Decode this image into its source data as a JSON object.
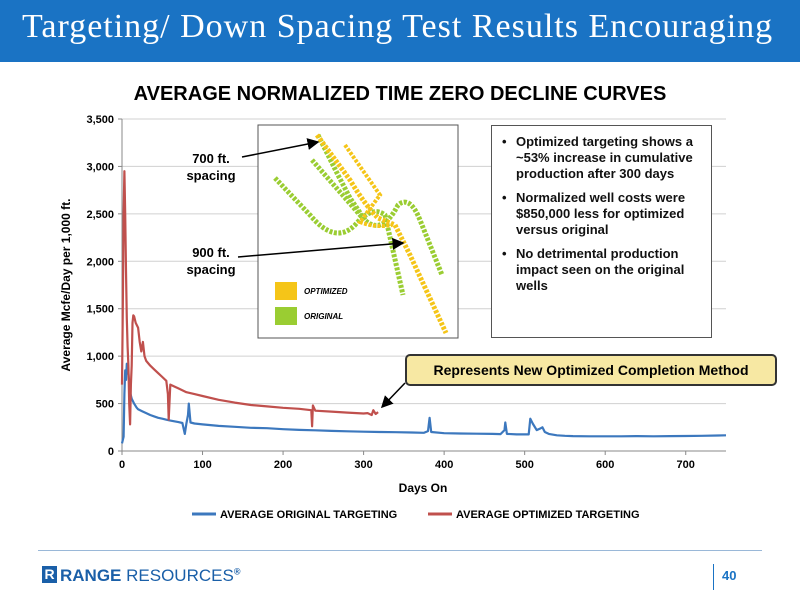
{
  "slide": {
    "title": "Targeting/ Down Spacing Test Results Encouraging",
    "page_number": "40",
    "brand": {
      "name_bold": "RANGE",
      "name_rest": " RESOURCES",
      "mark": "R",
      "reg": "®"
    }
  },
  "colors": {
    "title_bar": "#1a73c4",
    "original": "#3c78be",
    "optimized": "#c0504d",
    "diagram_optimized": "#f5c518",
    "diagram_original": "#9acd32",
    "callout": "#f7e8a3"
  },
  "bullets": [
    "Optimized targeting shows a ~53% increase in cumulative production after 300 days",
    "Normalized well costs were $850,000 less for optimized versus original",
    "No detrimental production impact seen on the original wells"
  ],
  "callout": "Represents New Optimized Completion Method",
  "spacing_labels": {
    "label_700": "700 ft. spacing",
    "label_900": "900 ft. spacing"
  },
  "diagram_legend": {
    "optimized": "OPTIMIZED",
    "original": "ORIGINAL"
  },
  "chart_data": {
    "type": "line",
    "title": "AVERAGE  NORMALIZED TIME ZERO DECLINE CURVES",
    "xlabel": "Days On",
    "ylabel": "Average Mcfe/Day per 1,000 ft.",
    "xlim": [
      0,
      750
    ],
    "ylim": [
      0,
      3500
    ],
    "xticks": [
      0,
      100,
      200,
      300,
      400,
      500,
      600,
      700
    ],
    "yticks": [
      0,
      500,
      1000,
      1500,
      2000,
      2500,
      3000,
      3500
    ],
    "ytick_labels": [
      "0",
      "500",
      "1,000",
      "1,500",
      "2,000",
      "2,500",
      "3,000",
      "3,500"
    ],
    "grid": "horizontal",
    "legend_position": "bottom",
    "series": [
      {
        "name": "AVERAGE ORIGINAL TARGETING",
        "points": [
          [
            0,
            80
          ],
          [
            2,
            150
          ],
          [
            3,
            600
          ],
          [
            4,
            850
          ],
          [
            5,
            750
          ],
          [
            6,
            920
          ],
          [
            8,
            820
          ],
          [
            10,
            620
          ],
          [
            12,
            550
          ],
          [
            15,
            500
          ],
          [
            18,
            460
          ],
          [
            20,
            440
          ],
          [
            25,
            420
          ],
          [
            30,
            400
          ],
          [
            35,
            380
          ],
          [
            40,
            365
          ],
          [
            45,
            350
          ],
          [
            50,
            340
          ],
          [
            55,
            330
          ],
          [
            60,
            320
          ],
          [
            70,
            305
          ],
          [
            75,
            295
          ],
          [
            78,
            180
          ],
          [
            80,
            290
          ],
          [
            82,
            380
          ],
          [
            83,
            500
          ],
          [
            85,
            300
          ],
          [
            90,
            290
          ],
          [
            100,
            280
          ],
          [
            120,
            265
          ],
          [
            140,
            255
          ],
          [
            160,
            245
          ],
          [
            180,
            240
          ],
          [
            200,
            230
          ],
          [
            220,
            222
          ],
          [
            240,
            218
          ],
          [
            260,
            212
          ],
          [
            280,
            208
          ],
          [
            300,
            203
          ],
          [
            320,
            200
          ],
          [
            340,
            198
          ],
          [
            360,
            195
          ],
          [
            375,
            192
          ],
          [
            380,
            210
          ],
          [
            382,
            350
          ],
          [
            384,
            200
          ],
          [
            400,
            188
          ],
          [
            420,
            185
          ],
          [
            440,
            182
          ],
          [
            460,
            180
          ],
          [
            470,
            178
          ],
          [
            475,
            220
          ],
          [
            476,
            300
          ],
          [
            478,
            180
          ],
          [
            490,
            175
          ],
          [
            505,
            175
          ],
          [
            507,
            340
          ],
          [
            510,
            290
          ],
          [
            515,
            220
          ],
          [
            520,
            240
          ],
          [
            522,
            250
          ],
          [
            525,
            200
          ],
          [
            530,
            180
          ],
          [
            540,
            165
          ],
          [
            550,
            160
          ],
          [
            560,
            157
          ],
          [
            580,
            155
          ],
          [
            600,
            155
          ],
          [
            620,
            155
          ],
          [
            640,
            157
          ],
          [
            660,
            155
          ],
          [
            680,
            157
          ],
          [
            700,
            158
          ],
          [
            720,
            160
          ],
          [
            740,
            163
          ],
          [
            750,
            165
          ]
        ]
      },
      {
        "name": "AVERAGE OPTIMIZED TARGETING",
        "points": [
          [
            0,
            700
          ],
          [
            1,
            1500
          ],
          [
            2,
            2500
          ],
          [
            3,
            2950
          ],
          [
            4,
            2500
          ],
          [
            5,
            1900
          ],
          [
            6,
            1400
          ],
          [
            7,
            1100
          ],
          [
            8,
            900
          ],
          [
            9,
            500
          ],
          [
            10,
            280
          ],
          [
            11,
            700
          ],
          [
            12,
            900
          ],
          [
            13,
            1350
          ],
          [
            14,
            1430
          ],
          [
            15,
            1420
          ],
          [
            17,
            1350
          ],
          [
            20,
            1300
          ],
          [
            22,
            1150
          ],
          [
            24,
            1050
          ],
          [
            26,
            1150
          ],
          [
            28,
            1000
          ],
          [
            30,
            950
          ],
          [
            35,
            900
          ],
          [
            40,
            860
          ],
          [
            45,
            820
          ],
          [
            50,
            780
          ],
          [
            55,
            740
          ],
          [
            57,
            600
          ],
          [
            58,
            330
          ],
          [
            60,
            700
          ],
          [
            65,
            680
          ],
          [
            70,
            660
          ],
          [
            80,
            620
          ],
          [
            90,
            600
          ],
          [
            100,
            580
          ],
          [
            120,
            540
          ],
          [
            140,
            510
          ],
          [
            160,
            485
          ],
          [
            180,
            470
          ],
          [
            200,
            455
          ],
          [
            220,
            445
          ],
          [
            235,
            430
          ],
          [
            236,
            260
          ],
          [
            237,
            480
          ],
          [
            240,
            425
          ],
          [
            260,
            415
          ],
          [
            280,
            405
          ],
          [
            300,
            395
          ],
          [
            305,
            400
          ],
          [
            310,
            380
          ],
          [
            312,
            430
          ],
          [
            315,
            390
          ],
          [
            318,
            410
          ]
        ]
      }
    ]
  }
}
